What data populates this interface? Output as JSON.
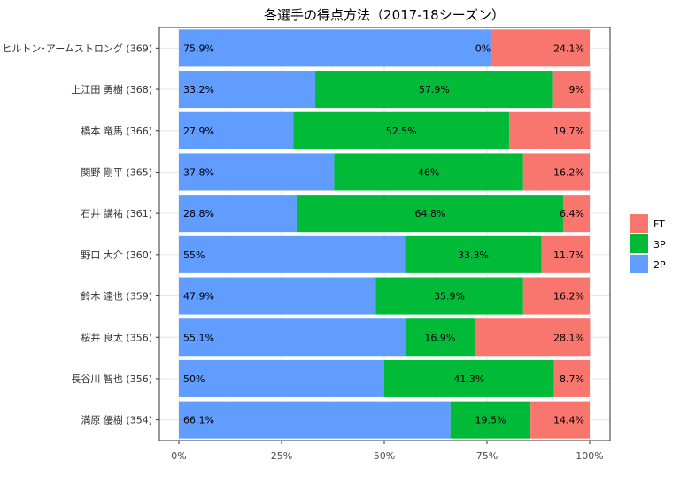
{
  "chart_data": {
    "type": "bar",
    "orientation": "horizontal",
    "stacked": true,
    "title": "各選手の得点方法（2017-18シーズン）",
    "xlabel": "",
    "ylabel": "",
    "xlim": [
      0,
      100
    ],
    "x_ticks": [
      "0%",
      "25%",
      "50%",
      "75%",
      "100%"
    ],
    "grid": true,
    "legend_position": "right",
    "categories": [
      "ヒルトン･アームストロング (369)",
      "上江田 勇樹 (368)",
      "橋本 竜馬 (366)",
      "関野 剛平 (365)",
      "石井 講祐 (361)",
      "野口 大介 (360)",
      "鈴木 達也 (359)",
      "桜井 良太 (356)",
      "長谷川 智也 (356)",
      "満原 優樹 (354)"
    ],
    "series": [
      {
        "name": "2P",
        "color": "#619CFF",
        "values": [
          75.9,
          33.2,
          27.9,
          37.8,
          28.8,
          55,
          47.9,
          55.1,
          50,
          66.1
        ],
        "labels": [
          "75.9%",
          "33.2%",
          "27.9%",
          "37.8%",
          "28.8%",
          "55%",
          "47.9%",
          "55.1%",
          "50%",
          "66.1%"
        ]
      },
      {
        "name": "3P",
        "color": "#00BA38",
        "values": [
          0,
          57.9,
          52.5,
          46,
          64.8,
          33.3,
          35.9,
          16.9,
          41.3,
          19.5
        ],
        "labels": [
          "0%",
          "57.9%",
          "52.5%",
          "46%",
          "64.8%",
          "33.3%",
          "35.9%",
          "16.9%",
          "41.3%",
          "19.5%"
        ]
      },
      {
        "name": "FT",
        "color": "#F8766D",
        "values": [
          24.1,
          9,
          19.7,
          16.2,
          6.4,
          11.7,
          16.2,
          28.1,
          8.7,
          14.4
        ],
        "labels": [
          "24.1%",
          "9%",
          "19.7%",
          "16.2%",
          "6.4%",
          "11.7%",
          "16.2%",
          "28.1%",
          "8.7%",
          "14.4%"
        ]
      }
    ],
    "legend_order": [
      "FT",
      "3P",
      "2P"
    ]
  }
}
